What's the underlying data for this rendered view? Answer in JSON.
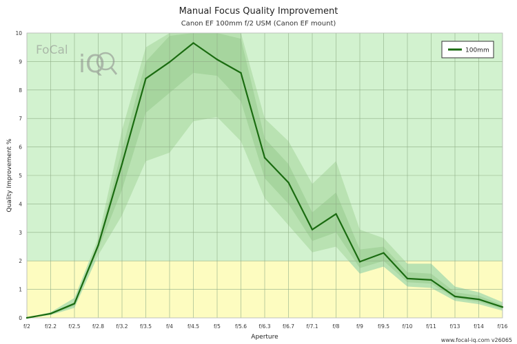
{
  "chart_data": {
    "type": "line",
    "title": "Manual Focus Quality Improvement",
    "subtitle": "Canon EF 100mm f/2 USM (Canon EF mount)",
    "xlabel": "Aperture",
    "ylabel": "Quality Improvement %",
    "categories": [
      "f/2",
      "f/2.2",
      "f/2.5",
      "f/2.8",
      "f/3.2",
      "f/3.5",
      "f/4",
      "f/4.5",
      "f/5",
      "f/5.6",
      "f/6.3",
      "f/6.7",
      "f/7.1",
      "f/8",
      "f/9",
      "f/9.5",
      "f/10",
      "f/11",
      "f/13",
      "f/14",
      "f/16"
    ],
    "ylim": [
      0,
      10
    ],
    "yticks": [
      0,
      1,
      2,
      3,
      4,
      5,
      6,
      7,
      8,
      9,
      10
    ],
    "grid": true,
    "legend_position": "top-right",
    "threshold": 2,
    "series": [
      {
        "name": "100mm",
        "color": "#1a6b10",
        "values": [
          0,
          0.15,
          0.5,
          2.55,
          5.4,
          8.4,
          8.98,
          9.65,
          9.07,
          8.6,
          5.62,
          4.75,
          3.1,
          3.65,
          1.97,
          2.28,
          1.38,
          1.33,
          0.75,
          0.65,
          0.38
        ],
        "range_outer_upper": [
          0,
          0.2,
          0.7,
          2.8,
          6.6,
          9.5,
          10,
          10,
          10,
          10,
          7.0,
          6.2,
          4.7,
          5.5,
          3.1,
          2.8,
          1.9,
          1.9,
          1.1,
          0.9,
          0.55
        ],
        "range_outer_lower": [
          0,
          0.1,
          0.35,
          2.2,
          3.6,
          5.5,
          5.8,
          6.9,
          7.05,
          6.2,
          4.2,
          3.25,
          2.3,
          2.5,
          1.55,
          1.8,
          1.1,
          1.05,
          0.6,
          0.48,
          0.25
        ],
        "range_inner_upper": [
          0,
          0.17,
          0.55,
          2.65,
          5.9,
          9.0,
          9.9,
          10,
          10,
          9.8,
          6.3,
          5.4,
          3.7,
          4.4,
          2.4,
          2.5,
          1.6,
          1.55,
          0.9,
          0.78,
          0.45
        ],
        "range_inner_lower": [
          0,
          0.12,
          0.42,
          2.4,
          4.5,
          7.2,
          7.9,
          8.6,
          8.5,
          7.6,
          4.9,
          4.0,
          2.7,
          3.0,
          1.75,
          2.0,
          1.25,
          1.2,
          0.68,
          0.56,
          0.3
        ]
      }
    ]
  },
  "watermark": {
    "logo_text": "FoCal",
    "logo_mark": "iQ"
  },
  "footer": "www.focal-iq.com  v26065",
  "colors": {
    "green_zone": "#d2f2cf",
    "yellow_zone": "#fdfcc0",
    "band_outer": "#b9e2b2",
    "band_inner": "#a6d59e",
    "grid": "#8fae86",
    "line": "#1a6b10"
  }
}
